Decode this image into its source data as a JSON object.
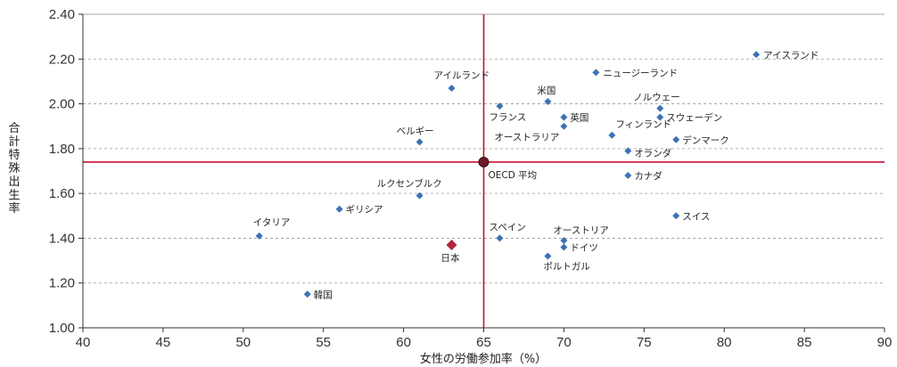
{
  "chart_data": {
    "type": "scatter",
    "title": "",
    "xlabel": "女性の労働参加率（%）",
    "ylabel": "合計特殊出生率",
    "xlim": [
      40,
      90
    ],
    "ylim": [
      1.0,
      2.4
    ],
    "x_ticks": [
      "40",
      "45",
      "50",
      "55",
      "60",
      "65",
      "70",
      "75",
      "80",
      "85",
      "90"
    ],
    "y_ticks": [
      "1.00",
      "1.20",
      "1.40",
      "1.60",
      "1.80",
      "2.00",
      "2.20",
      "2.40"
    ],
    "grid": "horizontal dashed",
    "reference_lines": {
      "x": 65,
      "y": 1.74,
      "color": "#c8102e"
    },
    "colors": {
      "point": "#3a73b5",
      "highlight": "#b0243a",
      "ref_line": "#c8102e",
      "grid": "#9a9a9a"
    },
    "points": [
      {
        "label": "アイスランド",
        "x": 82,
        "y": 2.22
      },
      {
        "label": "ニュージーランド",
        "x": 72,
        "y": 2.14
      },
      {
        "label": "アイルランド",
        "x": 63,
        "y": 2.07
      },
      {
        "label": "米国",
        "x": 69,
        "y": 2.01
      },
      {
        "label": "フランス",
        "x": 66,
        "y": 1.99
      },
      {
        "label": "ノルウェー",
        "x": 76,
        "y": 1.98
      },
      {
        "label": "英国",
        "x": 70,
        "y": 1.94
      },
      {
        "label": "スウェーデン",
        "x": 76,
        "y": 1.94
      },
      {
        "label": "オーストラリア",
        "x": 70,
        "y": 1.9
      },
      {
        "label": "フィンランド",
        "x": 73,
        "y": 1.86
      },
      {
        "label": "デンマーク",
        "x": 77,
        "y": 1.84
      },
      {
        "label": "ベルギー",
        "x": 61,
        "y": 1.83
      },
      {
        "label": "オランダ",
        "x": 74,
        "y": 1.79
      },
      {
        "label": "OECD 平均",
        "x": 65,
        "y": 1.74,
        "marker": "circle"
      },
      {
        "label": "カナダ",
        "x": 74,
        "y": 1.68
      },
      {
        "label": "ルクセンブルク",
        "x": 61,
        "y": 1.59
      },
      {
        "label": "ギリシア",
        "x": 56,
        "y": 1.53
      },
      {
        "label": "スイス",
        "x": 77,
        "y": 1.5
      },
      {
        "label": "イタリア",
        "x": 51,
        "y": 1.41
      },
      {
        "label": "スペイン",
        "x": 66,
        "y": 1.4
      },
      {
        "label": "オーストリア",
        "x": 70,
        "y": 1.39
      },
      {
        "label": "日本",
        "x": 63,
        "y": 1.37,
        "highlight": true
      },
      {
        "label": "ドイツ",
        "x": 70,
        "y": 1.36
      },
      {
        "label": "ポルトガル",
        "x": 69,
        "y": 1.32
      },
      {
        "label": "韓国",
        "x": 54,
        "y": 1.15
      }
    ]
  }
}
